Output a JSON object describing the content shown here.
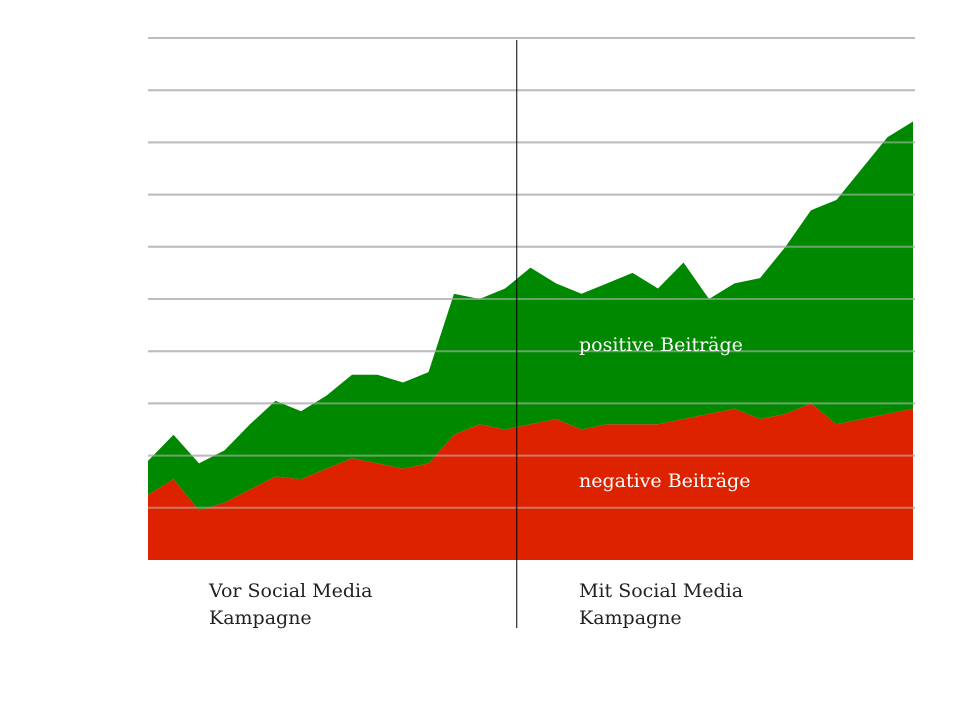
{
  "chart_data": {
    "type": "area",
    "stacked": true,
    "grid": true,
    "axes_visible": false,
    "series": [
      {
        "name": "negative Beiträge",
        "color": "#dd2200",
        "values": [
          12.5,
          15.5,
          9.5,
          11.0,
          13.5,
          16.0,
          15.5,
          17.5,
          19.5,
          18.5,
          17.5,
          18.5,
          24.0,
          26.0,
          25.0,
          26.0,
          27.0,
          25.0,
          26.0,
          26.0,
          26.0,
          27.0,
          28.0,
          29.0,
          27.0,
          28.0,
          30.0,
          26.0,
          27.0,
          28.0,
          29.0
        ]
      },
      {
        "name": "positive Beiträge",
        "color": "#008800",
        "values": [
          6.5,
          8.5,
          9.0,
          10.0,
          12.5,
          14.5,
          13.0,
          14.0,
          16.0,
          17.0,
          16.5,
          17.5,
          27.0,
          24.0,
          27.0,
          30.0,
          26.0,
          26.0,
          27.0,
          29.0,
          26.0,
          30.0,
          22.0,
          24.0,
          27.0,
          32.0,
          37.0,
          43.0,
          48.0,
          53.0,
          55.0
        ]
      }
    ],
    "ylim": [
      0,
      100
    ],
    "gridlines": [
      0,
      10,
      20,
      30,
      40,
      50,
      60,
      70,
      80,
      90,
      100
    ],
    "divider_after_index": 14.5,
    "annotations": {
      "positive": "positive Beiträge",
      "negative": "negative Beiträge",
      "before_line1": "Vor Social Media",
      "before_line2": "Kampagne",
      "after_line1": "Mit Social Media",
      "after_line2": "Kampagne"
    }
  }
}
